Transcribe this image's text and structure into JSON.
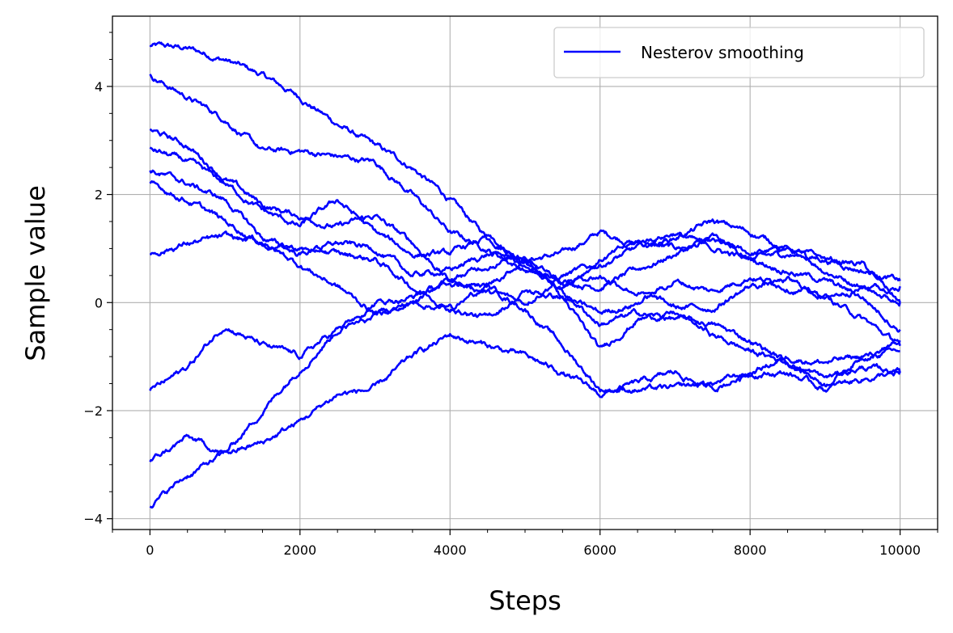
{
  "chart_data": {
    "type": "line",
    "title": "",
    "xlabel": "Steps",
    "ylabel": "Sample value",
    "xlim": [
      -500,
      10500
    ],
    "ylim": [
      -4.2,
      5.3
    ],
    "xticks": [
      0,
      2000,
      4000,
      6000,
      8000,
      10000
    ],
    "yticks": [
      -4,
      -2,
      0,
      2,
      4
    ],
    "xtick_labels": [
      "0",
      "2000",
      "4000",
      "6000",
      "8000",
      "10000"
    ],
    "ytick_labels": [
      "−4",
      "−2",
      "0",
      "2",
      "4"
    ],
    "grid": true,
    "minor_ticks": true,
    "legend": {
      "position": "top-right",
      "entries": [
        "Nesterov smoothing"
      ]
    },
    "color": "#0000ff",
    "x": [
      0,
      500,
      1000,
      1500,
      2000,
      2500,
      3000,
      3500,
      4000,
      4500,
      5000,
      5500,
      6000,
      6500,
      7000,
      7500,
      8000,
      8500,
      9000,
      9500,
      10000
    ],
    "series": [
      {
        "name": "Nesterov smoothing",
        "values": [
          4.75,
          4.7,
          4.5,
          4.2,
          3.8,
          3.3,
          2.9,
          2.5,
          1.9,
          1.2,
          0.8,
          0.9,
          1.3,
          1.1,
          1.0,
          1.1,
          0.9,
          1.0,
          0.6,
          0.3,
          0.3
        ]
      },
      {
        "name": "Nesterov smoothing",
        "values": [
          4.2,
          3.8,
          3.4,
          2.8,
          2.8,
          2.7,
          2.6,
          2.0,
          1.3,
          1.0,
          0.6,
          0.4,
          0.3,
          0.6,
          0.9,
          1.2,
          0.8,
          0.9,
          0.8,
          0.6,
          0.4
        ]
      },
      {
        "name": "Nesterov smoothing",
        "values": [
          3.2,
          2.9,
          2.3,
          1.8,
          1.6,
          1.4,
          1.6,
          1.1,
          0.4,
          0.2,
          0.0,
          0.5,
          0.7,
          1.0,
          1.2,
          1.5,
          1.3,
          1.0,
          0.8,
          0.7,
          0.0
        ]
      },
      {
        "name": "Nesterov smoothing",
        "values": [
          2.85,
          2.6,
          2.2,
          1.7,
          1.4,
          1.9,
          1.3,
          0.9,
          0.9,
          1.2,
          0.6,
          0.3,
          0.8,
          1.1,
          1.3,
          1.0,
          0.8,
          0.6,
          0.4,
          0.1,
          -0.5
        ]
      },
      {
        "name": "Nesterov smoothing",
        "values": [
          2.45,
          2.2,
          1.9,
          1.2,
          0.9,
          1.1,
          1.0,
          0.5,
          0.6,
          0.9,
          0.8,
          0.1,
          -0.2,
          0.0,
          0.4,
          0.2,
          0.5,
          0.3,
          0.1,
          -0.3,
          -0.8
        ]
      },
      {
        "name": "Nesterov smoothing",
        "values": [
          2.2,
          1.9,
          1.5,
          1.1,
          1.0,
          0.9,
          0.8,
          0.3,
          -0.1,
          0.3,
          0.8,
          0.2,
          -0.4,
          -0.2,
          -0.3,
          -0.4,
          -0.7,
          -1.1,
          -1.4,
          -1.2,
          -1.3
        ]
      },
      {
        "name": "Nesterov smoothing",
        "values": [
          0.9,
          1.1,
          1.2,
          1.1,
          0.7,
          0.3,
          -0.2,
          0.0,
          -0.1,
          -0.3,
          0.2,
          0.1,
          -0.9,
          -0.3,
          -0.2,
          -0.6,
          -0.9,
          -1.1,
          -1.5,
          -1.0,
          -0.7
        ]
      },
      {
        "name": "Nesterov smoothing",
        "values": [
          -1.65,
          -1.2,
          -0.4,
          -0.8,
          -1.0,
          -0.5,
          -0.3,
          0.0,
          0.4,
          0.3,
          -0.1,
          -0.8,
          -1.6,
          -1.6,
          -1.6,
          -1.5,
          -1.3,
          -1.0,
          -1.1,
          -1.0,
          -0.9
        ]
      },
      {
        "name": "Nesterov smoothing",
        "values": [
          -2.95,
          -2.5,
          -2.8,
          -2.0,
          -1.2,
          -0.5,
          0.0,
          0.1,
          0.4,
          0.7,
          0.9,
          0.4,
          0.5,
          0.2,
          -0.1,
          -0.1,
          0.3,
          0.4,
          0.1,
          0.3,
          0.0
        ]
      },
      {
        "name": "Nesterov smoothing",
        "values": [
          -3.75,
          -3.2,
          -2.8,
          -2.6,
          -2.2,
          -1.7,
          -1.6,
          -1.0,
          -0.6,
          -0.8,
          -1.0,
          -1.3,
          -1.7,
          -1.5,
          -1.3,
          -1.6,
          -1.3,
          -1.3,
          -1.6,
          -1.4,
          -1.3
        ]
      }
    ]
  }
}
